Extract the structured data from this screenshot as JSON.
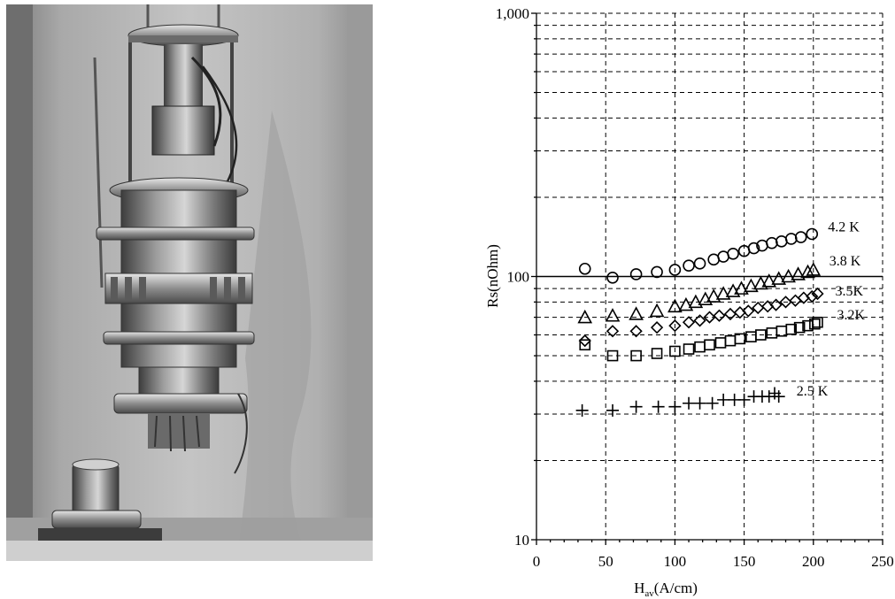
{
  "photo": {
    "description_icon": "cryostat-photo"
  },
  "chart_data": {
    "type": "scatter",
    "xlabel_main": "H",
    "xlabel_sub": "av",
    "xlabel_rest": "(A/cm)",
    "ylabel": "Rs(nOhm)",
    "xlim": [
      0,
      250
    ],
    "ylim": [
      10,
      1000
    ],
    "yscale": "log",
    "grid": true,
    "x_ticks": [
      0,
      50,
      100,
      150,
      200,
      250
    ],
    "x_tick_labels": [
      "0",
      "50",
      "100",
      "150",
      "200",
      "250"
    ],
    "y_tick_labels": [
      {
        "value": 10,
        "label": "10"
      },
      {
        "value": 100,
        "label": "100"
      },
      {
        "value": 1000,
        "label": "1,000"
      }
    ],
    "reference_line": {
      "y": 100
    },
    "series": [
      {
        "name": "4.2 K",
        "marker": "circle",
        "x": [
          35,
          55,
          72,
          87,
          100,
          110,
          118,
          128,
          135,
          142,
          150,
          157,
          163,
          170,
          177,
          184,
          191,
          199
        ],
        "y": [
          107,
          99,
          102,
          104,
          106,
          110,
          112,
          116,
          119,
          122,
          125,
          128,
          131,
          134,
          136,
          139,
          141,
          145
        ]
      },
      {
        "name": "3.8 K",
        "marker": "triangle",
        "x": [
          35,
          55,
          72,
          87,
          100,
          108,
          115,
          122,
          128,
          135,
          142,
          148,
          155,
          162,
          168,
          175,
          182,
          189,
          196,
          200
        ],
        "y": [
          70,
          71,
          72,
          74,
          77,
          78,
          80,
          82,
          84,
          86,
          88,
          90,
          92,
          94,
          96,
          98,
          100,
          102,
          104,
          106
        ]
      },
      {
        "name": "3.5K",
        "marker": "diamond",
        "x": [
          35,
          55,
          72,
          87,
          100,
          110,
          118,
          125,
          132,
          140,
          147,
          153,
          160,
          167,
          173,
          180,
          187,
          193,
          199,
          203
        ],
        "y": [
          57,
          62,
          62,
          64,
          65,
          67,
          68,
          70,
          71,
          72,
          73,
          74,
          76,
          77,
          78,
          80,
          81,
          83,
          84,
          86
        ]
      },
      {
        "name": "3.2K",
        "marker": "square",
        "x": [
          35,
          55,
          72,
          87,
          100,
          110,
          118,
          125,
          133,
          140,
          147,
          155,
          162,
          170,
          177,
          184,
          190,
          196,
          201,
          203
        ],
        "y": [
          55,
          50,
          50,
          51,
          52,
          53,
          54,
          55,
          56,
          57,
          58,
          59,
          60,
          61,
          62,
          63,
          64,
          65,
          66,
          67
        ]
      },
      {
        "name": "2.5 K",
        "marker": "plus",
        "x": [
          33,
          55,
          72,
          88,
          100,
          110,
          118,
          127,
          135,
          143,
          150,
          157,
          163,
          168,
          172,
          175
        ],
        "y": [
          31,
          31,
          32,
          32,
          32,
          33,
          33,
          33,
          34,
          34,
          34,
          35,
          35,
          35,
          36,
          35
        ]
      }
    ]
  }
}
